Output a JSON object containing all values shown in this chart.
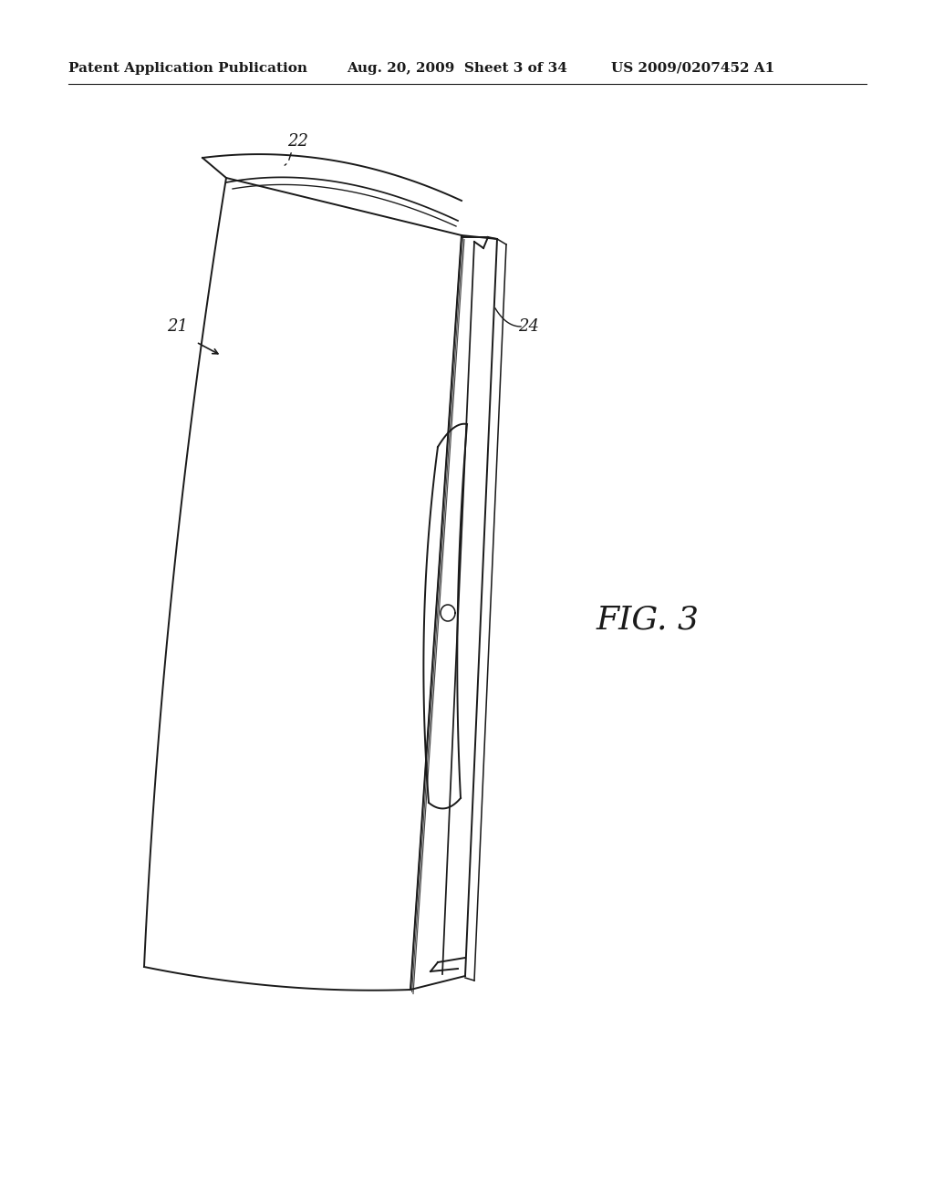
{
  "header_left": "Patent Application Publication",
  "header_center": "Aug. 20, 2009  Sheet 3 of 34",
  "header_right": "US 2009/0207452 A1",
  "fig_label": "FIG. 3",
  "label_21": "21",
  "label_22": "22",
  "label_24": "24",
  "background_color": "#ffffff",
  "line_color": "#1a1a1a",
  "header_fontsize": 11,
  "label_fontsize": 13
}
